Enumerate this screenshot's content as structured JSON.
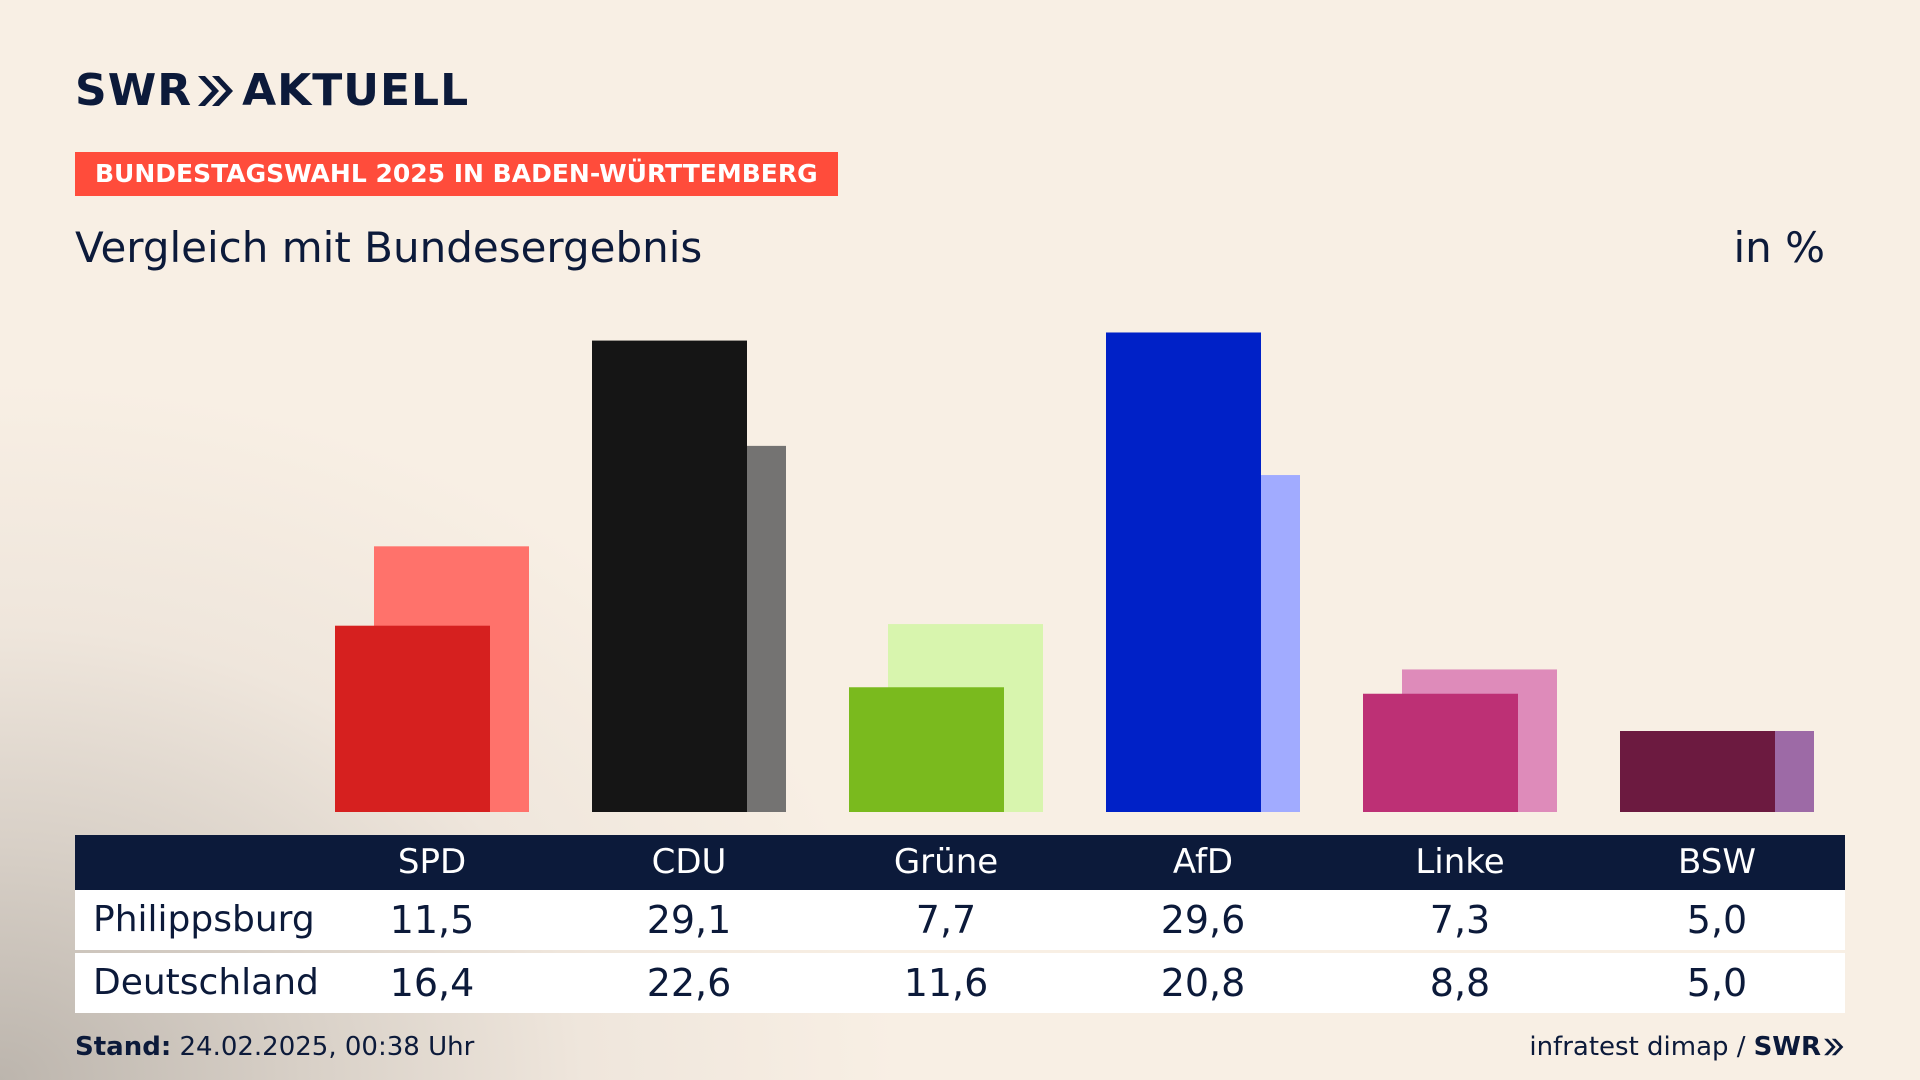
{
  "brand": {
    "logo_left": "SWR",
    "logo_right": "AKTUELL",
    "footer_logo": "SWR",
    "color_navy": "#0c1a3a",
    "color_ribbon": "#ff4c3b"
  },
  "header": {
    "ribbon": "BUNDESTAGSWAHL 2025 IN BADEN-WÜRTTEMBERG",
    "subtitle": "Vergleich mit Bundesergebnis",
    "unit": "in %"
  },
  "chart_data": {
    "type": "bar",
    "categories": [
      "SPD",
      "CDU",
      "Grüne",
      "AfD",
      "Linke",
      "BSW"
    ],
    "series": [
      {
        "name": "Philippsburg",
        "values": [
          11.5,
          29.1,
          7.7,
          29.6,
          7.3,
          5.0
        ],
        "colors": [
          "#d6201f",
          "#151515",
          "#7aba1e",
          "#0021c7",
          "#bd3075",
          "#6c1a40"
        ]
      },
      {
        "name": "Deutschland",
        "values": [
          16.4,
          22.6,
          11.6,
          20.8,
          8.8,
          5.0
        ],
        "colors": [
          "#ff726b",
          "#747372",
          "#d8f5ae",
          "#a1abff",
          "#de8bba",
          "#9d6aa6"
        ]
      }
    ],
    "ylim": [
      0,
      30
    ],
    "grid": false,
    "legend": "table below chart"
  },
  "table": {
    "headers": [
      "SPD",
      "CDU",
      "Grüne",
      "AfD",
      "Linke",
      "BSW"
    ],
    "rows": [
      {
        "label": "Philippsburg",
        "values": [
          "11,5",
          "29,1",
          "7,7",
          "29,6",
          "7,3",
          "5,0"
        ]
      },
      {
        "label": "Deutschland",
        "values": [
          "16,4",
          "22,6",
          "11,6",
          "20,8",
          "8,8",
          "5,0"
        ]
      }
    ]
  },
  "footer": {
    "stand_label": "Stand:",
    "stand_value": "24.02.2025, 00:38 Uhr",
    "source": "infratest dimap /"
  }
}
